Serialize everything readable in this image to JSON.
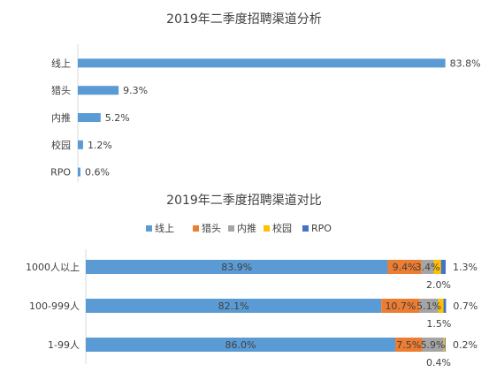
{
  "chart_data": [
    {
      "type": "bar",
      "orientation": "horizontal",
      "title": "2019年二季度招聘渠道分析",
      "categories": [
        "线上",
        "猎头",
        "内推",
        "校园",
        "RPO"
      ],
      "values": [
        83.8,
        9.3,
        5.2,
        1.2,
        0.6
      ],
      "value_labels": [
        "83.8%",
        "9.3%",
        "5.2%",
        "1.2%",
        "0.6%"
      ],
      "xlim": [
        0,
        100
      ],
      "grid": false,
      "color": "#5B9BD5"
    },
    {
      "type": "bar",
      "orientation": "horizontal",
      "stacked": true,
      "title": "2019年二季度招聘渠道对比",
      "categories": [
        "1000人以上",
        "100-999人",
        "1-99人"
      ],
      "legend_position": "top",
      "series": [
        {
          "name": "线上",
          "color": "#5B9BD5",
          "values": [
            83.9,
            82.1,
            86.0
          ],
          "labels": [
            "83.9%",
            "82.1%",
            "86.0%"
          ]
        },
        {
          "name": "猎头",
          "color": "#ED7D31",
          "values": [
            9.4,
            10.7,
            7.5
          ],
          "labels": [
            "9.4%",
            "10.7%",
            "7.5%"
          ]
        },
        {
          "name": "内推",
          "color": "#A5A5A5",
          "values": [
            3.4,
            5.1,
            5.9
          ],
          "labels": [
            "3.4%",
            "5.1%",
            "5.9%"
          ]
        },
        {
          "name": "校园",
          "color": "#FFC000",
          "values": [
            2.0,
            1.5,
            0.4
          ],
          "labels": [
            "2.0%",
            "1.5%",
            "0.4%"
          ]
        },
        {
          "name": "RPO",
          "color": "#4472C4",
          "values": [
            1.3,
            0.7,
            0.2
          ],
          "labels": [
            "1.3%",
            "0.7%",
            "0.2%"
          ]
        }
      ],
      "xlim": [
        0,
        100
      ],
      "grid": false
    }
  ]
}
